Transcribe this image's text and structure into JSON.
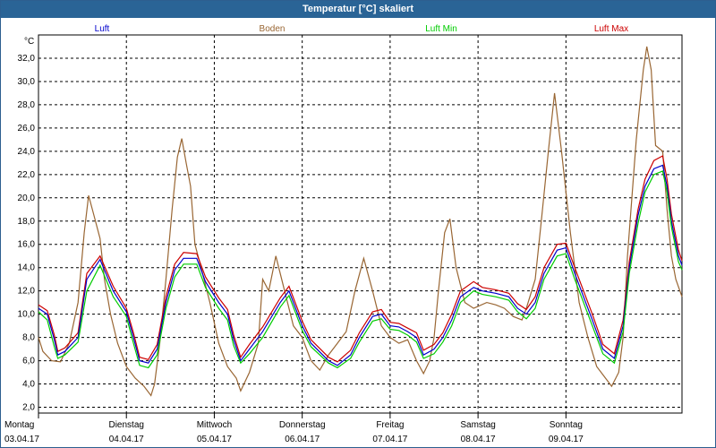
{
  "window": {
    "title": "Temperatur [°C] skaliert"
  },
  "chart_data": {
    "type": "line",
    "title": "Temperatur [°C] skaliert",
    "ylabel": "°C",
    "ylim": [
      1.5,
      34
    ],
    "xlim": [
      0,
      7
    ],
    "yticks": [
      2,
      4,
      6,
      8,
      10,
      12,
      14,
      16,
      18,
      20,
      22,
      24,
      26,
      28,
      30,
      32
    ],
    "ytick_labels": [
      "2,0",
      "4,0",
      "6,0",
      "8,0",
      "10,0",
      "12,0",
      "14,0",
      "16,0",
      "18,0",
      "20,0",
      "22,0",
      "24,0",
      "26,0",
      "28,0",
      "30,0",
      "32,0"
    ],
    "x_ticks": [
      {
        "day": "Montag",
        "date": "03.04.17"
      },
      {
        "day": "Dienstag",
        "date": "04.04.17"
      },
      {
        "day": "Mittwoch",
        "date": "05.04.17"
      },
      {
        "day": "Donnerstag",
        "date": "06.04.17"
      },
      {
        "day": "Freitag",
        "date": "07.04.17"
      },
      {
        "day": "Samstag",
        "date": "08.04.17"
      },
      {
        "day": "Sonntag",
        "date": "09.04.17"
      }
    ],
    "grid": true,
    "series": [
      {
        "name": "Luft",
        "color": "#0000cc",
        "points": [
          [
            0,
            10.5
          ],
          [
            0.1,
            10.0
          ],
          [
            0.18,
            7.8
          ],
          [
            0.22,
            6.5
          ],
          [
            0.3,
            6.8
          ],
          [
            0.45,
            8.0
          ],
          [
            0.55,
            13.0
          ],
          [
            0.7,
            14.7
          ],
          [
            0.85,
            12.0
          ],
          [
            1.0,
            10.2
          ],
          [
            1.08,
            8.0
          ],
          [
            1.15,
            6.0
          ],
          [
            1.25,
            5.8
          ],
          [
            1.35,
            7.0
          ],
          [
            1.45,
            11.0
          ],
          [
            1.55,
            13.8
          ],
          [
            1.65,
            14.8
          ],
          [
            1.8,
            14.8
          ],
          [
            1.9,
            12.8
          ],
          [
            2.05,
            11.0
          ],
          [
            2.15,
            10.0
          ],
          [
            2.22,
            7.8
          ],
          [
            2.3,
            6.0
          ],
          [
            2.4,
            7.0
          ],
          [
            2.55,
            8.5
          ],
          [
            2.75,
            11.0
          ],
          [
            2.85,
            12.0
          ],
          [
            3.0,
            9.0
          ],
          [
            3.1,
            7.5
          ],
          [
            3.3,
            6.0
          ],
          [
            3.4,
            5.6
          ],
          [
            3.55,
            6.5
          ],
          [
            3.65,
            8.0
          ],
          [
            3.8,
            9.8
          ],
          [
            3.9,
            10.0
          ],
          [
            4.0,
            9.0
          ],
          [
            4.1,
            8.9
          ],
          [
            4.2,
            8.5
          ],
          [
            4.3,
            8.0
          ],
          [
            4.38,
            6.5
          ],
          [
            4.5,
            7.0
          ],
          [
            4.6,
            8.0
          ],
          [
            4.7,
            9.5
          ],
          [
            4.8,
            11.5
          ],
          [
            4.95,
            12.3
          ],
          [
            5.05,
            12.0
          ],
          [
            5.2,
            11.8
          ],
          [
            5.35,
            11.5
          ],
          [
            5.45,
            10.5
          ],
          [
            5.55,
            10.0
          ],
          [
            5.65,
            11.0
          ],
          [
            5.75,
            13.5
          ],
          [
            5.9,
            15.5
          ],
          [
            6.0,
            15.7
          ],
          [
            6.1,
            13.5
          ],
          [
            6.2,
            11.5
          ],
          [
            6.3,
            9.5
          ],
          [
            6.42,
            7.0
          ],
          [
            6.55,
            6.2
          ],
          [
            6.65,
            9.0
          ],
          [
            6.72,
            14.0
          ],
          [
            6.82,
            18.5
          ],
          [
            6.9,
            21.0
          ],
          [
            7.0,
            22.5
          ],
          [
            7.1,
            22.8
          ],
          [
            7.15,
            21.0
          ],
          [
            7.2,
            18.0
          ],
          [
            7.28,
            15.0
          ],
          [
            7.32,
            14.2
          ]
        ]
      },
      {
        "name": "Boden",
        "color": "#996633",
        "points": [
          [
            0,
            8.0
          ],
          [
            0.05,
            6.8
          ],
          [
            0.15,
            6.0
          ],
          [
            0.25,
            5.9
          ],
          [
            0.35,
            7.5
          ],
          [
            0.45,
            11.0
          ],
          [
            0.52,
            17.0
          ],
          [
            0.57,
            20.2
          ],
          [
            0.62,
            18.8
          ],
          [
            0.7,
            16.5
          ],
          [
            0.75,
            13.0
          ],
          [
            0.82,
            10.0
          ],
          [
            0.9,
            7.5
          ],
          [
            1.0,
            5.5
          ],
          [
            1.1,
            4.5
          ],
          [
            1.2,
            3.8
          ],
          [
            1.28,
            3.0
          ],
          [
            1.32,
            4.0
          ],
          [
            1.38,
            7.5
          ],
          [
            1.45,
            13.0
          ],
          [
            1.52,
            19.0
          ],
          [
            1.58,
            23.5
          ],
          [
            1.63,
            25.1
          ],
          [
            1.68,
            23.0
          ],
          [
            1.73,
            21.0
          ],
          [
            1.78,
            16.0
          ],
          [
            1.85,
            14.0
          ],
          [
            1.95,
            11.0
          ],
          [
            2.05,
            7.5
          ],
          [
            2.15,
            5.5
          ],
          [
            2.25,
            4.5
          ],
          [
            2.3,
            3.4
          ],
          [
            2.4,
            5.0
          ],
          [
            2.5,
            7.5
          ],
          [
            2.55,
            13.0
          ],
          [
            2.62,
            12.0
          ],
          [
            2.7,
            15.0
          ],
          [
            2.8,
            12.0
          ],
          [
            2.9,
            9.0
          ],
          [
            3.0,
            8.0
          ],
          [
            3.1,
            6.0
          ],
          [
            3.2,
            5.2
          ],
          [
            3.3,
            6.5
          ],
          [
            3.4,
            7.5
          ],
          [
            3.5,
            8.5
          ],
          [
            3.6,
            12.0
          ],
          [
            3.7,
            14.8
          ],
          [
            3.8,
            12.0
          ],
          [
            3.9,
            9.0
          ],
          [
            4.0,
            8.0
          ],
          [
            4.1,
            7.5
          ],
          [
            4.2,
            7.8
          ],
          [
            4.3,
            6.0
          ],
          [
            4.38,
            4.9
          ],
          [
            4.45,
            6.0
          ],
          [
            4.5,
            8.0
          ],
          [
            4.55,
            12.0
          ],
          [
            4.62,
            17.0
          ],
          [
            4.68,
            18.2
          ],
          [
            4.75,
            14.0
          ],
          [
            4.85,
            11.0
          ],
          [
            4.95,
            10.5
          ],
          [
            5.1,
            11.0
          ],
          [
            5.2,
            10.8
          ],
          [
            5.3,
            10.5
          ],
          [
            5.4,
            9.8
          ],
          [
            5.5,
            9.5
          ],
          [
            5.55,
            10.5
          ],
          [
            5.65,
            13.0
          ],
          [
            5.72,
            18.0
          ],
          [
            5.8,
            24.0
          ],
          [
            5.87,
            29.0
          ],
          [
            5.95,
            24.0
          ],
          [
            6.05,
            17.0
          ],
          [
            6.15,
            11.0
          ],
          [
            6.25,
            8.0
          ],
          [
            6.35,
            5.5
          ],
          [
            6.45,
            4.5
          ],
          [
            6.52,
            3.8
          ],
          [
            6.6,
            5.0
          ],
          [
            6.65,
            8.0
          ],
          [
            6.7,
            15.0
          ],
          [
            6.8,
            25.0
          ],
          [
            6.88,
            31.0
          ],
          [
            6.92,
            33.0
          ],
          [
            6.97,
            31.0
          ],
          [
            7.02,
            24.5
          ],
          [
            7.1,
            24.0
          ],
          [
            7.15,
            19.0
          ],
          [
            7.2,
            15.0
          ],
          [
            7.25,
            13.0
          ],
          [
            7.32,
            11.5
          ]
        ]
      },
      {
        "name": "Luft Min",
        "color": "#00cc00",
        "points": [
          [
            0,
            10.2
          ],
          [
            0.1,
            9.5
          ],
          [
            0.18,
            7.2
          ],
          [
            0.22,
            6.2
          ],
          [
            0.3,
            6.5
          ],
          [
            0.45,
            7.6
          ],
          [
            0.55,
            12.0
          ],
          [
            0.7,
            14.2
          ],
          [
            0.85,
            11.5
          ],
          [
            1.0,
            9.8
          ],
          [
            1.08,
            7.5
          ],
          [
            1.15,
            5.6
          ],
          [
            1.25,
            5.4
          ],
          [
            1.35,
            6.5
          ],
          [
            1.45,
            10.5
          ],
          [
            1.55,
            13.2
          ],
          [
            1.65,
            14.3
          ],
          [
            1.8,
            14.3
          ],
          [
            1.9,
            12.3
          ],
          [
            2.05,
            10.5
          ],
          [
            2.15,
            9.5
          ],
          [
            2.22,
            7.3
          ],
          [
            2.3,
            5.8
          ],
          [
            2.4,
            6.6
          ],
          [
            2.55,
            8.0
          ],
          [
            2.75,
            10.6
          ],
          [
            2.85,
            11.6
          ],
          [
            3.0,
            8.6
          ],
          [
            3.1,
            7.2
          ],
          [
            3.3,
            5.8
          ],
          [
            3.4,
            5.4
          ],
          [
            3.55,
            6.2
          ],
          [
            3.65,
            7.6
          ],
          [
            3.8,
            9.4
          ],
          [
            3.9,
            9.6
          ],
          [
            4.0,
            8.7
          ],
          [
            4.1,
            8.6
          ],
          [
            4.2,
            8.2
          ],
          [
            4.3,
            7.6
          ],
          [
            4.38,
            6.2
          ],
          [
            4.5,
            6.6
          ],
          [
            4.6,
            7.6
          ],
          [
            4.7,
            9.0
          ],
          [
            4.8,
            11.0
          ],
          [
            4.95,
            12.0
          ],
          [
            5.05,
            11.7
          ],
          [
            5.2,
            11.5
          ],
          [
            5.35,
            11.2
          ],
          [
            5.45,
            10.2
          ],
          [
            5.55,
            9.6
          ],
          [
            5.65,
            10.5
          ],
          [
            5.75,
            13.0
          ],
          [
            5.9,
            15.0
          ],
          [
            6.0,
            15.2
          ],
          [
            6.1,
            13.0
          ],
          [
            6.2,
            11.0
          ],
          [
            6.3,
            9.0
          ],
          [
            6.42,
            6.6
          ],
          [
            6.55,
            5.8
          ],
          [
            6.65,
            8.5
          ],
          [
            6.72,
            13.5
          ],
          [
            6.82,
            17.8
          ],
          [
            6.9,
            20.5
          ],
          [
            7.0,
            22.0
          ],
          [
            7.1,
            22.3
          ],
          [
            7.15,
            20.5
          ],
          [
            7.2,
            17.5
          ],
          [
            7.28,
            14.5
          ],
          [
            7.32,
            13.8
          ]
        ]
      },
      {
        "name": "Luft Max",
        "color": "#cc0000",
        "points": [
          [
            0,
            10.8
          ],
          [
            0.1,
            10.3
          ],
          [
            0.18,
            8.2
          ],
          [
            0.22,
            6.8
          ],
          [
            0.3,
            7.1
          ],
          [
            0.45,
            8.4
          ],
          [
            0.55,
            13.5
          ],
          [
            0.7,
            15.0
          ],
          [
            0.85,
            12.4
          ],
          [
            1.0,
            10.5
          ],
          [
            1.08,
            8.4
          ],
          [
            1.15,
            6.3
          ],
          [
            1.25,
            6.1
          ],
          [
            1.35,
            7.4
          ],
          [
            1.45,
            11.5
          ],
          [
            1.55,
            14.3
          ],
          [
            1.65,
            15.3
          ],
          [
            1.8,
            15.2
          ],
          [
            1.9,
            13.2
          ],
          [
            2.05,
            11.4
          ],
          [
            2.15,
            10.4
          ],
          [
            2.22,
            8.2
          ],
          [
            2.3,
            6.3
          ],
          [
            2.4,
            7.4
          ],
          [
            2.55,
            8.9
          ],
          [
            2.75,
            11.4
          ],
          [
            2.85,
            12.4
          ],
          [
            3.0,
            9.4
          ],
          [
            3.1,
            7.8
          ],
          [
            3.3,
            6.3
          ],
          [
            3.4,
            5.9
          ],
          [
            3.55,
            6.9
          ],
          [
            3.65,
            8.4
          ],
          [
            3.8,
            10.2
          ],
          [
            3.9,
            10.4
          ],
          [
            4.0,
            9.3
          ],
          [
            4.1,
            9.2
          ],
          [
            4.2,
            8.8
          ],
          [
            4.3,
            8.4
          ],
          [
            4.38,
            6.9
          ],
          [
            4.5,
            7.4
          ],
          [
            4.6,
            8.4
          ],
          [
            4.7,
            10.0
          ],
          [
            4.8,
            12.0
          ],
          [
            4.95,
            12.8
          ],
          [
            5.05,
            12.3
          ],
          [
            5.2,
            12.1
          ],
          [
            5.35,
            11.8
          ],
          [
            5.45,
            10.9
          ],
          [
            5.55,
            10.4
          ],
          [
            5.65,
            11.5
          ],
          [
            5.75,
            14.0
          ],
          [
            5.9,
            16.0
          ],
          [
            6.0,
            16.1
          ],
          [
            6.1,
            14.0
          ],
          [
            6.2,
            12.0
          ],
          [
            6.3,
            10.0
          ],
          [
            6.42,
            7.4
          ],
          [
            6.55,
            6.6
          ],
          [
            6.65,
            9.5
          ],
          [
            6.72,
            14.5
          ],
          [
            6.82,
            19.0
          ],
          [
            6.9,
            21.6
          ],
          [
            7.0,
            23.2
          ],
          [
            7.1,
            23.6
          ],
          [
            7.15,
            21.6
          ],
          [
            7.2,
            18.6
          ],
          [
            7.28,
            15.5
          ],
          [
            7.32,
            14.6
          ]
        ]
      }
    ]
  }
}
